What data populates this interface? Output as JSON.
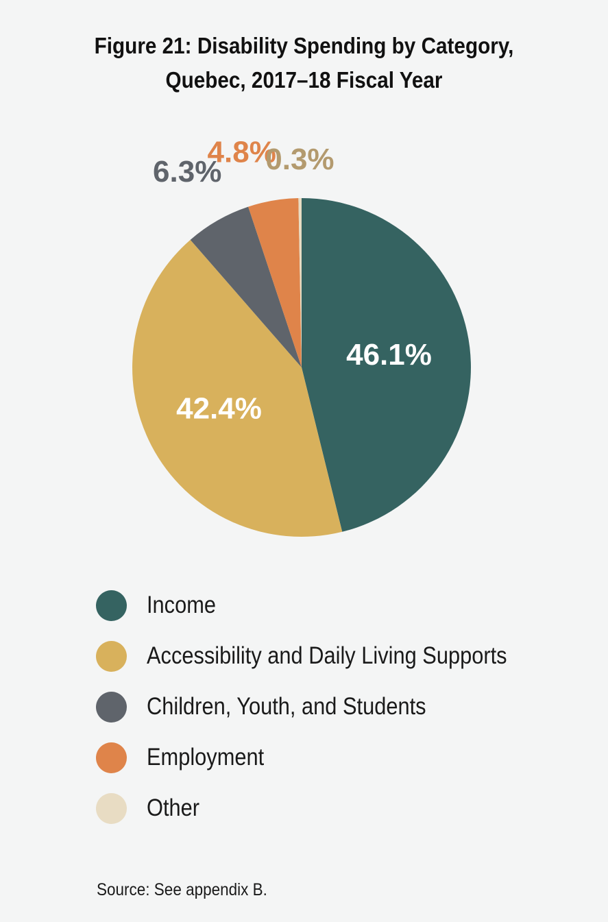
{
  "chart_data": {
    "type": "pie",
    "title": "Figure 21: Disability Spending by Category, Quebec, 2017–18 Fiscal Year",
    "title_lines": [
      "Figure 21: Disability Spending by Category,",
      "Quebec, 2017–18 Fiscal Year"
    ],
    "categories": [
      "Income",
      "Accessibility and Daily Living Supports",
      "Children, Youth, and Students",
      "Employment",
      "Other"
    ],
    "values": [
      46.1,
      42.4,
      6.3,
      4.8,
      0.3
    ],
    "value_labels": [
      "46.1%",
      "42.4%",
      "6.3%",
      "4.8%",
      "0.3%"
    ],
    "colors": [
      "#356361",
      "#d8b15c",
      "#5f646b",
      "#df844a",
      "#e8dcc3"
    ],
    "label_colors": [
      "#ffffff",
      "#ffffff",
      "#5f646b",
      "#df844a",
      "#b39a6e"
    ],
    "legend_position": "bottom-left",
    "source": "Source: See appendix B."
  }
}
